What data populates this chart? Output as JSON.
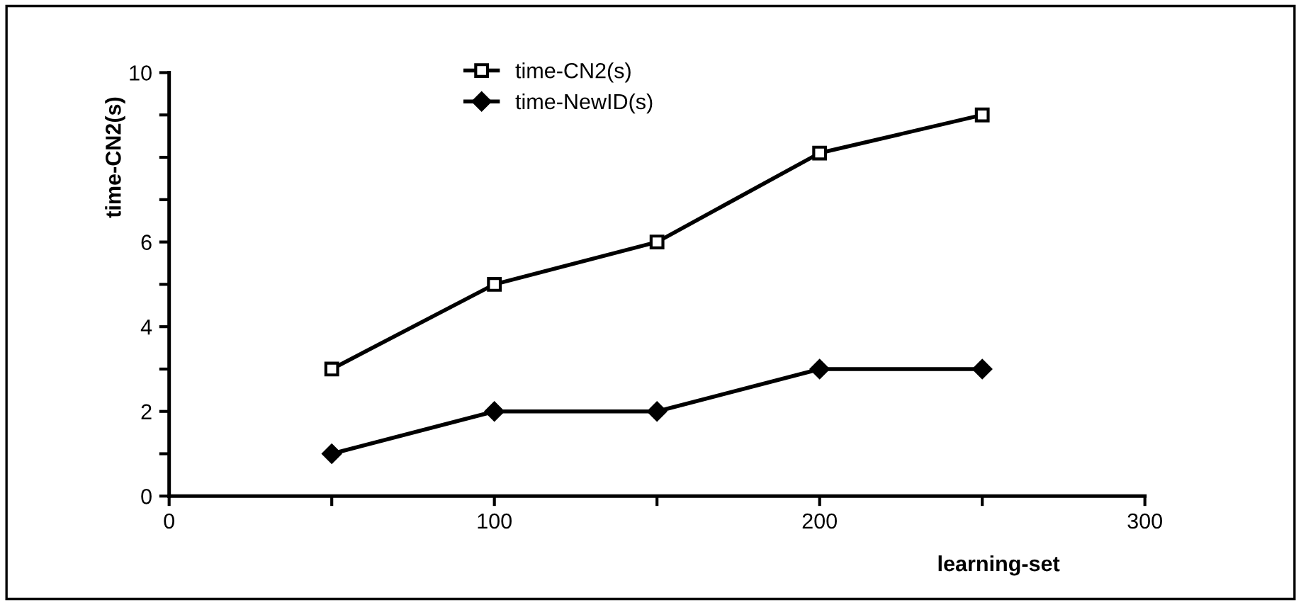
{
  "chart_data": {
    "type": "line",
    "xlabel": "learning-set",
    "ylabel": "time-CN2(s)",
    "x": [
      50,
      100,
      150,
      200,
      250
    ],
    "series": [
      {
        "name": "time-CN2(s)",
        "color": "#000000",
        "marker": "square",
        "values": [
          3,
          5,
          6,
          8.1,
          9
        ]
      },
      {
        "name": "time-NewID(s)",
        "color": "#000000",
        "marker": "diamond",
        "values": [
          1,
          2,
          2,
          3,
          3
        ]
      }
    ],
    "xlim": [
      0,
      300
    ],
    "ylim": [
      0,
      10
    ],
    "xticks": [
      0,
      {
        "value": 50,
        "label": null
      },
      100,
      {
        "value": 150,
        "label": null
      },
      200,
      {
        "value": 250,
        "label": null
      },
      300
    ],
    "yticks": [
      0,
      {
        "value": 1,
        "label": null
      },
      2,
      {
        "value": 3,
        "label": null
      },
      4,
      {
        "value": 5,
        "label": null
      },
      6,
      {
        "value": 7,
        "label": null
      },
      {
        "value": 8,
        "label": null
      },
      {
        "value": 9,
        "label": null
      },
      10
    ],
    "grid": false,
    "legend": "top",
    "line_style": "solid"
  }
}
